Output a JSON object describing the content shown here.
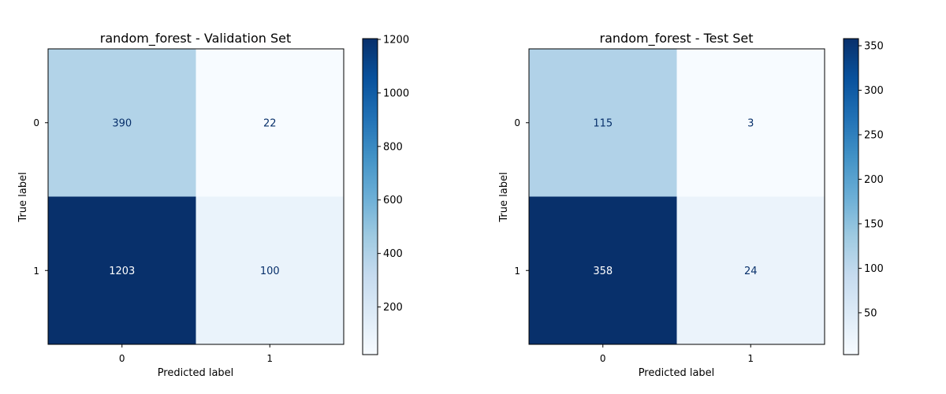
{
  "chart_data": [
    {
      "type": "heatmap",
      "title": "random_forest - Validation Set",
      "xlabel": "Predicted label",
      "ylabel": "True label",
      "x_tick_labels": [
        "0",
        "1"
      ],
      "y_tick_labels": [
        "0",
        "1"
      ],
      "matrix": [
        [
          390,
          22
        ],
        [
          1203,
          100
        ]
      ],
      "cell_labels": [
        [
          "390",
          "22"
        ],
        [
          "1203",
          "100"
        ]
      ],
      "colormap": "Blues",
      "colorbar": {
        "min": 22,
        "max": 1203,
        "ticks": [
          200,
          400,
          600,
          800,
          1000,
          1200
        ],
        "tick_labels": [
          "200",
          "400",
          "600",
          "800",
          "1000",
          "1200"
        ]
      },
      "grid": false
    },
    {
      "type": "heatmap",
      "title": "random_forest - Test Set",
      "xlabel": "Predicted label",
      "ylabel": "True label",
      "x_tick_labels": [
        "0",
        "1"
      ],
      "y_tick_labels": [
        "0",
        "1"
      ],
      "matrix": [
        [
          115,
          3
        ],
        [
          358,
          24
        ]
      ],
      "cell_labels": [
        [
          "115",
          "3"
        ],
        [
          "358",
          "24"
        ]
      ],
      "colormap": "Blues",
      "colorbar": {
        "min": 3,
        "max": 358,
        "ticks": [
          50,
          100,
          150,
          200,
          250,
          300,
          350
        ],
        "tick_labels": [
          "50",
          "100",
          "150",
          "200",
          "250",
          "300",
          "350"
        ]
      },
      "grid": false
    }
  ]
}
